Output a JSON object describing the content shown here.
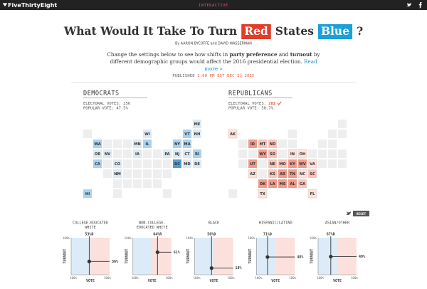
{
  "topbar": {
    "brand": "FiveThirtyEight",
    "section": "INTERACTIVE"
  },
  "header": {
    "title": [
      "What Would It Take To Turn",
      "Red",
      "States",
      "Blue",
      "?"
    ],
    "byline": "By AARON BYCOFFE and DAVID WASSERMAN",
    "intro": [
      "Change the settings below to see how shifts in ",
      "party preference",
      " and ",
      "turnout",
      " by different demographic groups would affect the 2016 presidential election."
    ],
    "read_more": "Read more »",
    "published": "PUBLISHED",
    "time": "2:00 PM EST",
    "date": "DEC 3, 2015"
  },
  "maps": [
    {
      "title": "DEMOCRATS",
      "electoral_label": "ELECTORAL VOTES:",
      "electoral": "256",
      "popular": "POPULAR VOTE: 47.5%",
      "states": [
        {
          "label": "ME",
          "color": "#dce9f3"
        },
        {
          "label": "WI",
          "color": "#dce9f3"
        },
        {
          "label": "VT",
          "color": "#a9d2ee"
        },
        {
          "label": "NH",
          "color": "#dce9f3"
        },
        {
          "label": "WA",
          "color": "#a9d2ee"
        },
        {
          "label": "MN",
          "color": "#dce9f3"
        },
        {
          "label": "IL",
          "color": "#a9d2ee"
        },
        {
          "label": "NY",
          "color": "#a9d2ee"
        },
        {
          "label": "MA",
          "color": "#a9d2ee"
        },
        {
          "label": "OR",
          "color": "#dce9f3"
        },
        {
          "label": "NV",
          "color": "#dce9f3"
        },
        {
          "label": "IA",
          "color": "#dce9f3"
        },
        {
          "label": "PA",
          "color": "#dce9f3"
        },
        {
          "label": "NJ",
          "color": "#dce9f3"
        },
        {
          "label": "CT",
          "color": "#dce9f3"
        },
        {
          "label": "RI",
          "color": "#a9d2ee"
        },
        {
          "label": "CA",
          "color": "#a9d2ee"
        },
        {
          "label": "CO",
          "color": "#dce9f3"
        },
        {
          "label": "DC",
          "color": "#4a9fd8"
        },
        {
          "label": "MD",
          "color": "#dce9f3"
        },
        {
          "label": "DE",
          "color": "#dce9f3"
        },
        {
          "label": "NM",
          "color": "#dce9f3"
        },
        {
          "label": "HI",
          "color": "#a9d2ee"
        }
      ]
    },
    {
      "title": "REPUBLICANS",
      "electoral_label": "ELECTORAL VOTES:",
      "electoral": "282",
      "popular": "POPULAR VOTE: 50.7%",
      "states": [
        {
          "label": "AK",
          "color": "#fbe2dc"
        },
        {
          "label": "ID",
          "color": "#f29a8a"
        },
        {
          "label": "MT",
          "color": "#f8c4b9"
        },
        {
          "label": "ND",
          "color": "#f8c4b9"
        },
        {
          "label": "WY",
          "color": "#f29a8a"
        },
        {
          "label": "SD",
          "color": "#f8c4b9"
        },
        {
          "label": "IN",
          "color": "#fbe2dc"
        },
        {
          "label": "OH",
          "color": "#fbe2dc"
        },
        {
          "label": "UT",
          "color": "#f29a8a"
        },
        {
          "label": "NE",
          "color": "#f8c4b9"
        },
        {
          "label": "MO",
          "color": "#f8c4b9"
        },
        {
          "label": "KY",
          "color": "#f29a8a"
        },
        {
          "label": "WV",
          "color": "#f29a8a"
        },
        {
          "label": "VA",
          "color": "#fbe2dc"
        },
        {
          "label": "AZ",
          "color": "#fbe2dc"
        },
        {
          "label": "KS",
          "color": "#f8c4b9"
        },
        {
          "label": "AR",
          "color": "#f29a8a"
        },
        {
          "label": "TN",
          "color": "#f29a8a"
        },
        {
          "label": "NC",
          "color": "#fbe2dc"
        },
        {
          "label": "SC",
          "color": "#f8c4b9"
        },
        {
          "label": "OK",
          "color": "#f29a8a"
        },
        {
          "label": "LA",
          "color": "#f29a8a"
        },
        {
          "label": "MS",
          "color": "#f29a8a"
        },
        {
          "label": "AL",
          "color": "#f29a8a"
        },
        {
          "label": "GA",
          "color": "#f8c4b9"
        },
        {
          "label": "TX",
          "color": "#fbe2dc"
        },
        {
          "label": "FL",
          "color": "#fbe2dc"
        }
      ]
    }
  ],
  "reset": "RESET",
  "axis": {
    "turnout": "TURNOUT",
    "vote": "VOTE",
    "max": "100%"
  },
  "groups": [
    {
      "title": [
        "COLLEGE-EDUCATED",
        "WHITE"
      ],
      "party": "D",
      "vote": {
        "value": 53,
        "label": "53%D"
      },
      "turnout": {
        "value": 36,
        "label": "36%"
      }
    },
    {
      "title": [
        "NON-COLLEGE-",
        "EDUCATED WHITE"
      ],
      "party": "R",
      "vote": {
        "value": 64,
        "label": "64%R"
      },
      "turnout": {
        "value": 61,
        "label": "61%"
      }
    },
    {
      "title": [
        "BLACK"
      ],
      "party": "D",
      "vote": {
        "value": 56,
        "label": "56%D"
      },
      "turnout": {
        "value": 18,
        "label": "18%"
      }
    },
    {
      "title": [
        "HISPANIC/LATINO"
      ],
      "party": "D",
      "vote": {
        "value": 71,
        "label": "71%D"
      },
      "turnout": {
        "value": 48,
        "label": "48%"
      }
    },
    {
      "title": [
        "ASIAN/OTHER"
      ],
      "party": "D",
      "vote": {
        "value": 67,
        "label": "67%D"
      },
      "turnout": {
        "value": 49,
        "label": "49%"
      }
    }
  ]
}
